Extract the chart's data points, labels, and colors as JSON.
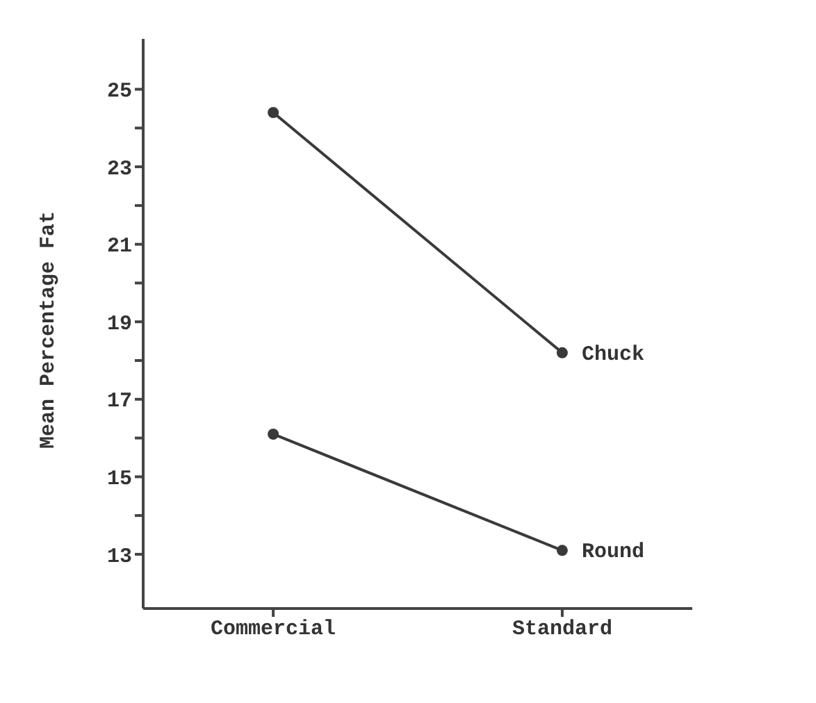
{
  "chart_data": {
    "type": "line",
    "ylabel": "Mean Percentage Fat",
    "categories": [
      "Commercial",
      "Standard"
    ],
    "series": [
      {
        "name": "Chuck",
        "color": "#3a3a3a",
        "values": [
          24.4,
          18.2
        ]
      },
      {
        "name": "Round",
        "color": "#3a3a3a",
        "values": [
          16.1,
          13.1
        ]
      }
    ],
    "ylim": [
      11.6,
      26.3
    ],
    "yticks": [
      13,
      {
        "value": 14,
        "label": null
      },
      15,
      {
        "value": 16,
        "label": null
      },
      17,
      {
        "value": 18,
        "label": null
      },
      19,
      {
        "value": 20,
        "label": null
      },
      21,
      {
        "value": 22,
        "label": null
      },
      23,
      {
        "value": 24,
        "label": null
      },
      25
    ],
    "grid": false,
    "legend": false,
    "marker": "circle",
    "line_style": "solid"
  }
}
